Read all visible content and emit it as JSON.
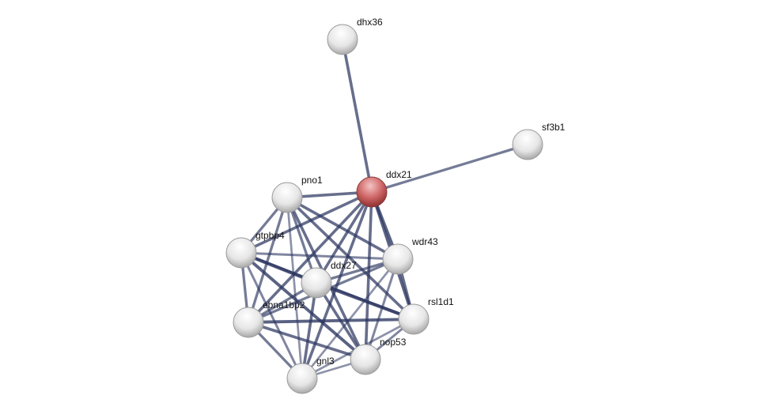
{
  "nodes": [
    {
      "id": "dhx36",
      "label": "dhx36",
      "query": false
    },
    {
      "id": "sf3b1",
      "label": "sf3b1",
      "query": false
    },
    {
      "id": "ddx21",
      "label": "ddx21",
      "query": true
    },
    {
      "id": "pno1",
      "label": "pno1",
      "query": false
    },
    {
      "id": "gtpbp4",
      "label": "gtpbp4",
      "query": false
    },
    {
      "id": "wdr43",
      "label": "wdr43",
      "query": false
    },
    {
      "id": "ddx27",
      "label": "ddx27",
      "query": false
    },
    {
      "id": "ebna1bp2",
      "label": "ebna1bp2",
      "query": false
    },
    {
      "id": "rsl1d1",
      "label": "rsl1d1",
      "query": false
    },
    {
      "id": "nop53",
      "label": "nop53",
      "query": false
    },
    {
      "id": "gnl3",
      "label": "gnl3",
      "query": false
    }
  ],
  "edges": [
    [
      "ddx21",
      "dhx36",
      0.7
    ],
    [
      "ddx21",
      "sf3b1",
      0.6
    ],
    [
      "ddx21",
      "pno1",
      0.7
    ],
    [
      "ddx21",
      "gtpbp4",
      0.7
    ],
    [
      "ddx21",
      "wdr43",
      0.8
    ],
    [
      "ddx21",
      "ddx27",
      0.7
    ],
    [
      "ddx21",
      "ebna1bp2",
      0.7
    ],
    [
      "ddx21",
      "rsl1d1",
      0.8
    ],
    [
      "ddx21",
      "nop53",
      0.7
    ],
    [
      "ddx21",
      "gnl3",
      0.7
    ],
    [
      "pno1",
      "gtpbp4",
      0.6
    ],
    [
      "pno1",
      "wdr43",
      0.7
    ],
    [
      "pno1",
      "ddx27",
      0.6
    ],
    [
      "pno1",
      "ebna1bp2",
      0.6
    ],
    [
      "pno1",
      "rsl1d1",
      0.7
    ],
    [
      "pno1",
      "nop53",
      0.7
    ],
    [
      "pno1",
      "gnl3",
      0.4
    ],
    [
      "gtpbp4",
      "wdr43",
      0.5
    ],
    [
      "gtpbp4",
      "ddx27",
      0.9
    ],
    [
      "gtpbp4",
      "ebna1bp2",
      0.6
    ],
    [
      "gtpbp4",
      "rsl1d1",
      0.5
    ],
    [
      "gtpbp4",
      "nop53",
      0.8
    ],
    [
      "gtpbp4",
      "gnl3",
      0.5
    ],
    [
      "wdr43",
      "ddx27",
      0.6
    ],
    [
      "wdr43",
      "ebna1bp2",
      0.6
    ],
    [
      "wdr43",
      "rsl1d1",
      0.7
    ],
    [
      "wdr43",
      "nop53",
      0.5
    ],
    [
      "wdr43",
      "gnl3",
      0.4
    ],
    [
      "ddx27",
      "ebna1bp2",
      0.6
    ],
    [
      "ddx27",
      "rsl1d1",
      0.9
    ],
    [
      "ddx27",
      "nop53",
      0.7
    ],
    [
      "ddx27",
      "gnl3",
      0.7
    ],
    [
      "ebna1bp2",
      "rsl1d1",
      0.8
    ],
    [
      "ebna1bp2",
      "nop53",
      0.7
    ],
    [
      "ebna1bp2",
      "gnl3",
      0.6
    ],
    [
      "rsl1d1",
      "nop53",
      0.5
    ],
    [
      "rsl1d1",
      "gnl3",
      0.4
    ],
    [
      "nop53",
      "gnl3",
      0.4
    ]
  ],
  "colors": {
    "edge": "#2c3660",
    "node": "#e8e8e8",
    "query_node": "#d06060"
  }
}
